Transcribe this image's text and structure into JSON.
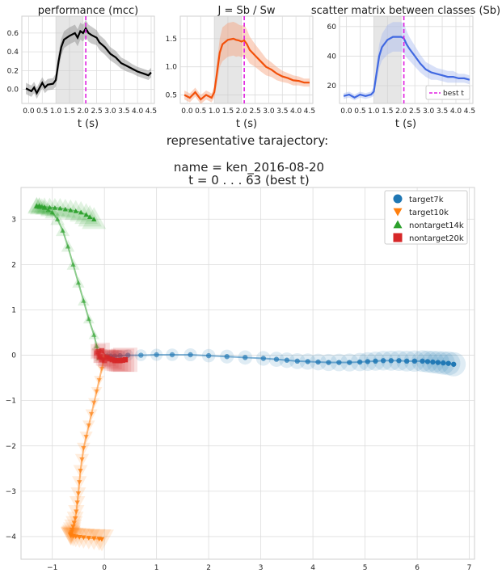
{
  "top_panels": {
    "xlabel": "t (s)",
    "xticks": [
      0.0,
      0.5,
      1.0,
      1.5,
      2.0,
      2.5,
      3.0,
      3.5,
      4.0,
      4.5
    ],
    "xtick_labels": [
      "0.0",
      "0.5",
      "1.0",
      "1.5",
      "2.0",
      "2.5",
      "3.0",
      "3.5",
      "4.0",
      "4.5"
    ],
    "shade_range": [
      1.0,
      2.0
    ],
    "best_t": 2.1,
    "best_t_color": "#e020e0",
    "legend_label": "best t"
  },
  "trajectory_heading": {
    "line1": "representative tarajectory:",
    "line2": "name = ken_2016-08-20",
    "line3": "t = 0 . . .  63 (best t)"
  },
  "chart_data": [
    {
      "type": "line",
      "title": "performance (mcc)",
      "xlabel": "t (s)",
      "ylim": [
        -0.15,
        0.78
      ],
      "yticks": [
        0.0,
        0.2,
        0.4,
        0.6
      ],
      "ytick_labels": [
        "0.0",
        "0.2",
        "0.4",
        "0.6"
      ],
      "color": "#000000",
      "band_color": "#888888",
      "x": [
        -0.1,
        0.1,
        0.2,
        0.3,
        0.5,
        0.6,
        0.7,
        0.9,
        1.0,
        1.1,
        1.2,
        1.3,
        1.5,
        1.7,
        1.8,
        1.9,
        2.0,
        2.1,
        2.2,
        2.3,
        2.5,
        2.6,
        2.8,
        3.0,
        3.2,
        3.4,
        3.6,
        3.8,
        4.0,
        4.2,
        4.4,
        4.5
      ],
      "y": [
        0.01,
        -0.02,
        0.02,
        -0.04,
        0.07,
        0.02,
        0.05,
        0.06,
        0.1,
        0.3,
        0.45,
        0.53,
        0.57,
        0.6,
        0.55,
        0.62,
        0.6,
        0.65,
        0.6,
        0.58,
        0.55,
        0.5,
        0.45,
        0.38,
        0.34,
        0.28,
        0.25,
        0.22,
        0.19,
        0.17,
        0.15,
        0.18
      ],
      "band": [
        0.06,
        0.06,
        0.06,
        0.06,
        0.06,
        0.06,
        0.06,
        0.06,
        0.07,
        0.09,
        0.09,
        0.09,
        0.09,
        0.09,
        0.09,
        0.09,
        0.09,
        0.09,
        0.09,
        0.09,
        0.08,
        0.08,
        0.08,
        0.07,
        0.07,
        0.06,
        0.06,
        0.05,
        0.05,
        0.05,
        0.05,
        0.05
      ]
    },
    {
      "type": "line",
      "title": "J = Sb / Sw",
      "xlabel": "t (s)",
      "ylim": [
        0.35,
        1.9
      ],
      "yticks": [
        0.5,
        1.0,
        1.5
      ],
      "ytick_labels": [
        "0.5",
        "1.0",
        "1.5"
      ],
      "color": "#f2500a",
      "band_color": "#f7a07a",
      "x": [
        -0.1,
        0.1,
        0.3,
        0.5,
        0.7,
        0.9,
        1.0,
        1.1,
        1.2,
        1.3,
        1.5,
        1.7,
        1.8,
        1.9,
        2.0,
        2.1,
        2.2,
        2.3,
        2.5,
        2.7,
        2.9,
        3.1,
        3.3,
        3.5,
        3.7,
        3.9,
        4.1,
        4.3,
        4.5
      ],
      "y": [
        0.5,
        0.45,
        0.55,
        0.42,
        0.5,
        0.45,
        0.55,
        0.9,
        1.25,
        1.4,
        1.48,
        1.5,
        1.48,
        1.47,
        1.45,
        1.47,
        1.4,
        1.3,
        1.2,
        1.1,
        1.0,
        0.95,
        0.88,
        0.83,
        0.8,
        0.76,
        0.75,
        0.72,
        0.72
      ],
      "band": [
        0.08,
        0.08,
        0.08,
        0.08,
        0.08,
        0.08,
        0.1,
        0.2,
        0.25,
        0.3,
        0.3,
        0.3,
        0.3,
        0.28,
        0.28,
        0.28,
        0.26,
        0.24,
        0.2,
        0.18,
        0.15,
        0.13,
        0.12,
        0.1,
        0.09,
        0.09,
        0.08,
        0.07,
        0.07
      ]
    },
    {
      "type": "line",
      "title": "scatter matrix between classes (Sb)",
      "xlabel": "t (s)",
      "ylim": [
        8,
        67
      ],
      "yticks": [
        20,
        40,
        60
      ],
      "ytick_labels": [
        "20",
        "40",
        "60"
      ],
      "color": "#4169e1",
      "band_color": "#a8bbf0",
      "legend": "lower right",
      "x": [
        -0.1,
        0.1,
        0.3,
        0.5,
        0.7,
        0.9,
        1.0,
        1.1,
        1.2,
        1.3,
        1.5,
        1.7,
        1.9,
        2.0,
        2.1,
        2.2,
        2.3,
        2.5,
        2.7,
        2.9,
        3.1,
        3.3,
        3.5,
        3.7,
        3.9,
        4.1,
        4.3,
        4.5
      ],
      "y": [
        13,
        14,
        12,
        14,
        13,
        14,
        16,
        28,
        40,
        46,
        51,
        53,
        53,
        53,
        52,
        48,
        45,
        40,
        35,
        31,
        29,
        28,
        27,
        26,
        26,
        25,
        25,
        24
      ],
      "band": [
        2,
        2,
        2,
        2,
        2,
        2,
        3,
        6,
        8,
        9,
        10,
        10,
        10,
        10,
        10,
        9,
        8,
        7,
        6,
        5,
        5,
        4,
        4,
        4,
        4,
        3,
        3,
        3
      ]
    },
    {
      "type": "scatter",
      "title": "",
      "xlim": [
        -1.6,
        7.1
      ],
      "ylim": [
        -4.5,
        3.7
      ],
      "xticks": [
        -1,
        0,
        1,
        2,
        3,
        4,
        5,
        6,
        7
      ],
      "xtick_labels": [
        "−1",
        "0",
        "1",
        "2",
        "3",
        "4",
        "5",
        "6",
        "7"
      ],
      "yticks": [
        -4,
        -3,
        -2,
        -1,
        0,
        1,
        2,
        3
      ],
      "ytick_labels": [
        "−4",
        "−3",
        "−2",
        "−1",
        "0",
        "1",
        "2",
        "3"
      ],
      "legend": "upper right",
      "series": [
        {
          "name": "target7k",
          "marker": "circle",
          "color": "#1f77b4",
          "x": [
            0.05,
            0.12,
            0.2,
            0.3,
            0.45,
            0.7,
            1.0,
            1.3,
            1.65,
            2.0,
            2.35,
            2.7,
            3.05,
            3.3,
            3.5,
            3.7,
            3.9,
            4.1,
            4.3,
            4.5,
            4.7,
            4.9,
            5.05,
            5.2,
            5.35,
            5.5,
            5.65,
            5.8,
            5.95,
            6.1,
            6.2,
            6.3,
            6.4,
            6.5,
            6.6,
            6.7
          ],
          "y": [
            -0.02,
            -0.02,
            -0.02,
            -0.01,
            0.0,
            0.0,
            0.01,
            0.01,
            0.01,
            -0.01,
            -0.03,
            -0.05,
            -0.07,
            -0.09,
            -0.11,
            -0.13,
            -0.14,
            -0.15,
            -0.16,
            -0.16,
            -0.16,
            -0.15,
            -0.14,
            -0.13,
            -0.12,
            -0.12,
            -0.12,
            -0.13,
            -0.13,
            -0.13,
            -0.14,
            -0.15,
            -0.16,
            -0.17,
            -0.18,
            -0.2
          ]
        },
        {
          "name": "target10k",
          "marker": "triangle-down",
          "color": "#ff7f0e",
          "x": [
            0.0,
            -0.05,
            -0.1,
            -0.15,
            -0.2,
            -0.25,
            -0.3,
            -0.35,
            -0.4,
            -0.43,
            -0.46,
            -0.48,
            -0.5,
            -0.52,
            -0.54,
            -0.56,
            -0.58,
            -0.6,
            -0.62,
            -0.63,
            -0.64,
            -0.65,
            -0.65,
            -0.64,
            -0.6,
            -0.55,
            -0.48,
            -0.4,
            -0.3,
            -0.2,
            -0.1,
            -0.05
          ],
          "y": [
            -0.05,
            -0.3,
            -0.55,
            -0.8,
            -1.05,
            -1.3,
            -1.55,
            -1.8,
            -2.05,
            -2.3,
            -2.55,
            -2.8,
            -3.05,
            -3.25,
            -3.45,
            -3.6,
            -3.7,
            -3.78,
            -3.85,
            -3.9,
            -3.93,
            -3.95,
            -3.97,
            -3.98,
            -3.99,
            -4.0,
            -4.01,
            -4.02,
            -4.03,
            -4.04,
            -4.05,
            -4.06
          ]
        },
        {
          "name": "nontarget14k",
          "marker": "triangle-up",
          "color": "#2ca02c",
          "x": [
            -0.1,
            -0.15,
            -0.2,
            -0.3,
            -0.4,
            -0.5,
            -0.6,
            -0.7,
            -0.8,
            -0.9,
            -1.0,
            -1.08,
            -1.15,
            -1.2,
            -1.25,
            -1.3,
            -1.3,
            -1.25,
            -1.15,
            -1.05,
            -0.95,
            -0.85,
            -0.75,
            -0.65,
            -0.55,
            -0.45,
            -0.35,
            -0.28,
            -0.2
          ],
          "y": [
            -0.05,
            0.2,
            0.45,
            0.8,
            1.2,
            1.6,
            2.0,
            2.4,
            2.75,
            3.0,
            3.15,
            3.2,
            3.25,
            3.28,
            3.3,
            3.3,
            3.28,
            3.27,
            3.27,
            3.26,
            3.25,
            3.24,
            3.22,
            3.2,
            3.18,
            3.15,
            3.1,
            3.05,
            3.0
          ]
        },
        {
          "name": "nontarget20k",
          "marker": "square",
          "color": "#d62728",
          "x": [
            -0.15,
            -0.1,
            -0.05,
            0.0,
            -0.08,
            -0.12,
            -0.05,
            0.05,
            0.1,
            0.15,
            0.2,
            0.25,
            0.3,
            0.35,
            0.4
          ],
          "y": [
            0.05,
            -0.05,
            -0.1,
            -0.12,
            -0.02,
            0.08,
            0.1,
            -0.05,
            -0.08,
            -0.1,
            -0.12,
            -0.12,
            -0.12,
            -0.11,
            -0.1
          ]
        }
      ]
    }
  ]
}
